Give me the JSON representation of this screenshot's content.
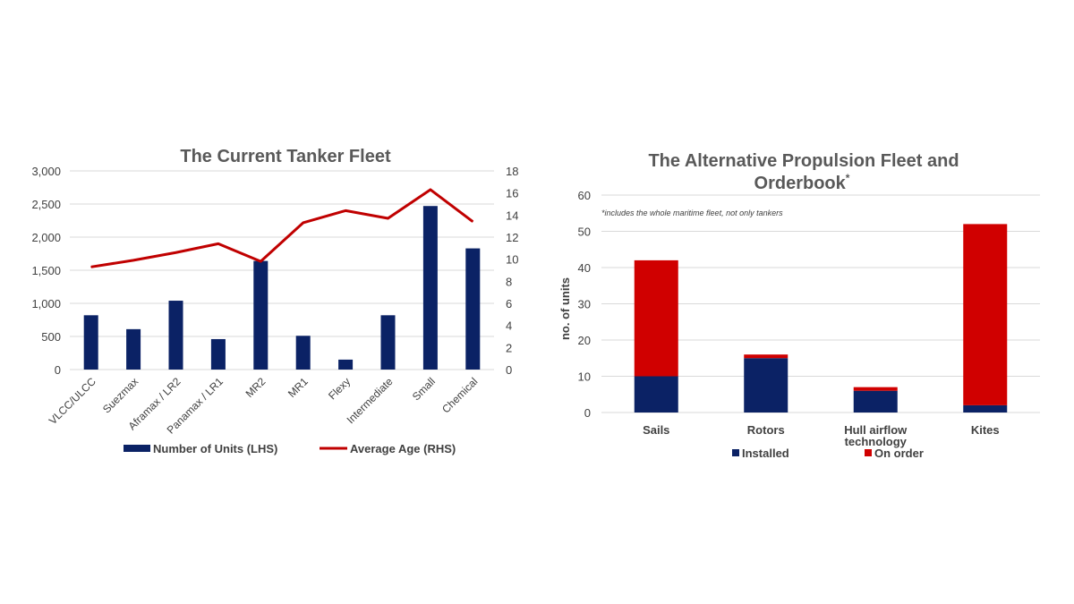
{
  "chart_data": [
    {
      "type": "bar",
      "title": "The Current Tanker Fleet",
      "categories": [
        "VLCC/ULCC",
        "Suezmax",
        "Aframax / LR2",
        "Panamax / LR1",
        "MR2",
        "MR1",
        "Flexy",
        "Intermediate",
        "Small",
        "Chemical"
      ],
      "series": [
        {
          "name": "Number of Units (LHS)",
          "type": "bar",
          "axis": "left",
          "color": "#0b2265",
          "values": [
            820,
            610,
            1040,
            460,
            1640,
            510,
            150,
            820,
            2470,
            1830
          ]
        },
        {
          "name": "Average Age (RHS)",
          "type": "line",
          "axis": "right",
          "color": "#c00000",
          "values": [
            9.3,
            9.9,
            10.6,
            11.4,
            9.8,
            13.3,
            14.4,
            13.7,
            16.3,
            13.4
          ]
        }
      ],
      "y_left": {
        "min": 0,
        "max": 3000,
        "ticks": [
          "0",
          "500",
          "1,000",
          "1,500",
          "2,000",
          "2,500",
          "3,000"
        ]
      },
      "y_right": {
        "min": 0,
        "max": 18,
        "ticks": [
          "0",
          "2",
          "4",
          "6",
          "8",
          "10",
          "12",
          "14",
          "16",
          "18"
        ]
      },
      "grid": true,
      "legend": "bottom"
    },
    {
      "type": "bar",
      "stacked": true,
      "title": "The Alternative Propulsion Fleet and Orderbook",
      "title_lines": [
        "The Alternative Propulsion Fleet and",
        "Orderbook"
      ],
      "title_superscript": "*",
      "note": "*includes the whole maritime fleet, not only tankers",
      "categories": [
        "Sails",
        "Rotors",
        "Hull airflow technology",
        "Kites"
      ],
      "category_lines": [
        [
          "Sails"
        ],
        [
          "Rotors"
        ],
        [
          "Hull airflow",
          "technology"
        ],
        [
          "Kites"
        ]
      ],
      "series": [
        {
          "name": "Installed",
          "color": "#0b2265",
          "values": [
            10,
            15,
            6,
            2
          ]
        },
        {
          "name": "On order",
          "color": "#d00000",
          "values": [
            32,
            1,
            1,
            50
          ]
        }
      ],
      "ylabel": "no. of units",
      "y": {
        "min": 0,
        "max": 60,
        "ticks": [
          "0",
          "10",
          "20",
          "30",
          "40",
          "50",
          "60"
        ]
      },
      "grid": true,
      "legend": "bottom"
    }
  ]
}
